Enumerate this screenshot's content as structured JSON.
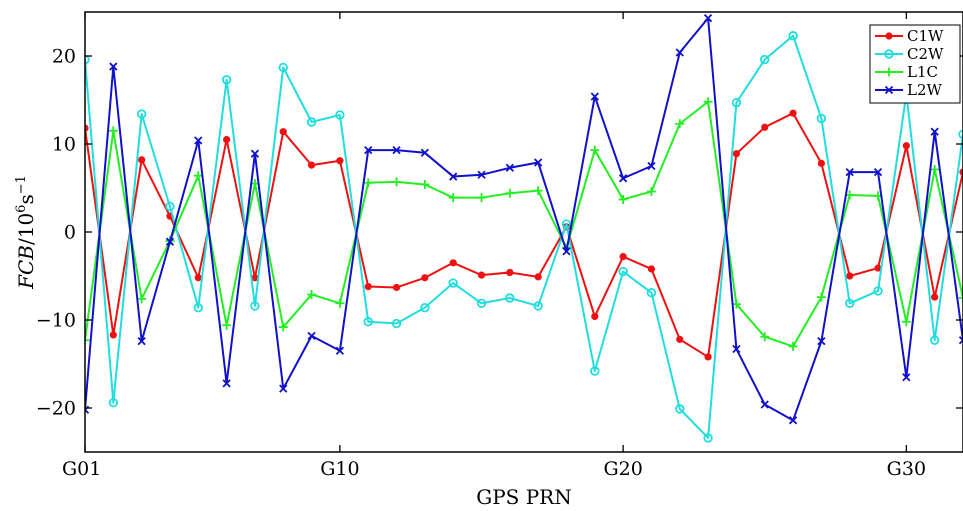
{
  "chart_data": {
    "type": "line",
    "xlabel": "GPS PRN",
    "ylabel_main": "FCB",
    "ylabel_unit": "/10",
    "ylabel_exp1": "6",
    "ylabel_s": "s",
    "ylabel_exp2": "−1",
    "x_ticks": [
      {
        "value": 1,
        "label": "G01"
      },
      {
        "value": 10,
        "label": "G10"
      },
      {
        "value": 20,
        "label": "G20"
      },
      {
        "value": 30,
        "label": "G30"
      }
    ],
    "y_ticks": [
      {
        "value": -20,
        "label": "−20"
      },
      {
        "value": -10,
        "label": "−10"
      },
      {
        "value": 0,
        "label": "0"
      },
      {
        "value": 10,
        "label": "10"
      },
      {
        "value": 20,
        "label": "20"
      }
    ],
    "xlim": [
      1,
      32
    ],
    "ylim": [
      -25,
      25
    ],
    "grid": false,
    "legend_position": "top-right",
    "x": [
      1,
      2,
      3,
      4,
      5,
      6,
      7,
      8,
      9,
      10,
      11,
      12,
      13,
      14,
      15,
      16,
      17,
      18,
      19,
      20,
      21,
      22,
      23,
      24,
      25,
      26,
      27,
      28,
      29,
      30,
      31,
      32
    ],
    "series": [
      {
        "name": "C1W",
        "color": "#ee1111",
        "marker": "dot",
        "values": [
          11.8,
          -11.7,
          8.2,
          1.8,
          -5.2,
          10.5,
          -5.2,
          11.4,
          7.6,
          8.1,
          -6.2,
          -6.3,
          -5.2,
          -3.5,
          -4.9,
          -4.6,
          -5.1,
          0.6,
          -9.6,
          -2.8,
          -4.2,
          -12.2,
          -14.2,
          8.9,
          11.9,
          13.5,
          7.8,
          -5.0,
          -4.1,
          9.8,
          -7.4,
          6.8
        ]
      },
      {
        "name": "C2W",
        "color": "#22dddd",
        "marker": "circle",
        "values": [
          19.6,
          -19.4,
          13.4,
          2.9,
          -8.6,
          17.3,
          -8.4,
          18.7,
          12.5,
          13.3,
          -10.2,
          -10.4,
          -8.6,
          -5.8,
          -8.1,
          -7.5,
          -8.4,
          0.9,
          -15.8,
          -4.5,
          -6.9,
          -20.1,
          -23.4,
          14.7,
          19.6,
          22.3,
          12.9,
          -8.1,
          -6.7,
          15.7,
          -12.3,
          11.1
        ]
      },
      {
        "name": "L1C",
        "color": "#22ee22",
        "marker": "plus",
        "values": [
          -12.3,
          11.5,
          -7.6,
          -1.0,
          6.4,
          -10.6,
          5.5,
          -10.8,
          -7.1,
          -8.1,
          5.6,
          5.7,
          5.4,
          3.9,
          3.9,
          4.4,
          4.7,
          -1.8,
          9.3,
          3.7,
          4.6,
          12.3,
          14.8,
          -8.2,
          -11.9,
          -13.0,
          -7.4,
          4.2,
          4.1,
          -10.2,
          7.1,
          -7.5
        ]
      },
      {
        "name": "L2W",
        "color": "#1111cc",
        "marker": "x",
        "values": [
          -20.2,
          18.8,
          -12.4,
          -1.1,
          10.4,
          -17.2,
          8.9,
          -17.8,
          -11.8,
          -13.5,
          9.3,
          9.3,
          9.0,
          6.3,
          6.5,
          7.3,
          7.9,
          -2.2,
          15.4,
          6.1,
          7.5,
          20.4,
          24.3,
          -13.3,
          -19.6,
          -21.4,
          -12.4,
          6.8,
          6.8,
          -16.5,
          11.4,
          -12.3
        ]
      }
    ]
  }
}
